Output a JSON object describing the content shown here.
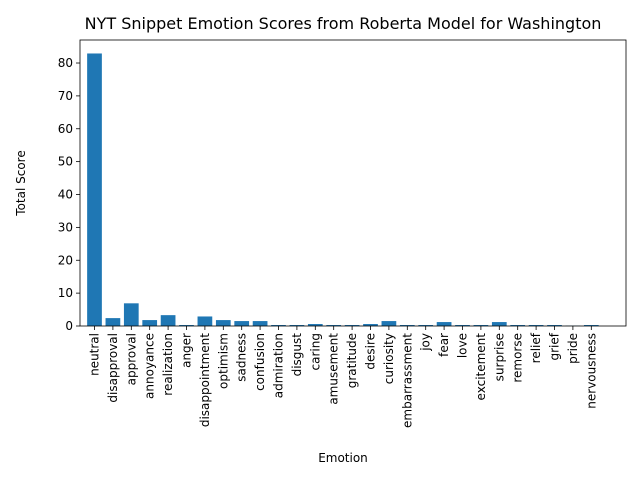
{
  "chart_data": {
    "type": "bar",
    "title": "NYT Snippet Emotion Scores from Roberta Model for Washington",
    "xlabel": "Emotion",
    "ylabel": "Total Score",
    "ylim": [
      0,
      87
    ],
    "yticks": [
      0,
      10,
      20,
      30,
      40,
      50,
      60,
      70,
      80
    ],
    "grid": false,
    "bar_color": "#1f77b4",
    "categories": [
      "neutral",
      "disapproval",
      "approval",
      "annoyance",
      "realization",
      "anger",
      "disappointment",
      "optimism",
      "sadness",
      "confusion",
      "admiration",
      "disgust",
      "caring",
      "amusement",
      "gratitude",
      "desire",
      "curiosity",
      "embarrassment",
      "joy",
      "fear",
      "love",
      "excitement",
      "surprise",
      "remorse",
      "relief",
      "grief",
      "pride",
      "nervousness"
    ],
    "values": [
      82.9,
      2.4,
      6.9,
      1.8,
      3.3,
      0.3,
      2.9,
      1.8,
      1.5,
      1.5,
      0.3,
      0.3,
      0.6,
      0.3,
      0.3,
      0.6,
      1.5,
      0.3,
      0.3,
      1.2,
      0.3,
      0.3,
      1.2,
      0.3,
      0.3,
      0.3,
      0.1,
      0.3
    ]
  }
}
